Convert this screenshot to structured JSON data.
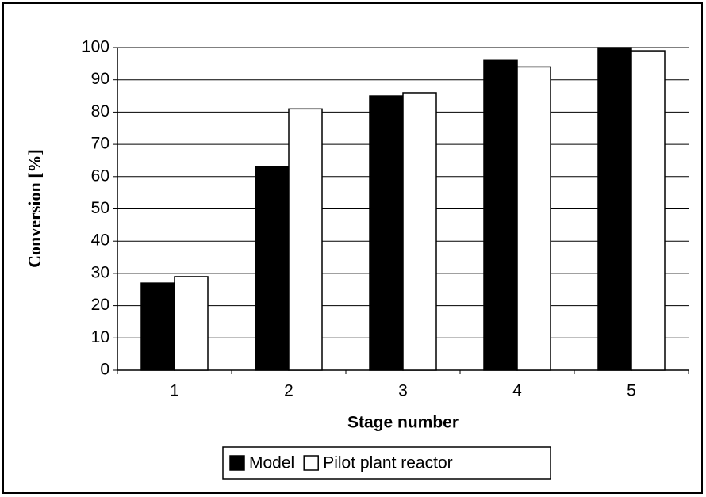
{
  "chart_data": {
    "type": "bar",
    "x_label": "Stage number",
    "y_label": "Conversion [%]",
    "categories": [
      "1",
      "2",
      "3",
      "4",
      "5"
    ],
    "series": [
      {
        "name": "Model",
        "color": "#000000",
        "values": [
          27,
          63,
          85,
          96,
          100
        ]
      },
      {
        "name": "Pilot plant reactor",
        "color": "#ffffff",
        "values": [
          29,
          81,
          86,
          94,
          99
        ]
      }
    ],
    "ylim": [
      0,
      100
    ],
    "yticks": [
      0,
      10,
      20,
      30,
      40,
      50,
      60,
      70,
      80,
      90,
      100
    ],
    "grid": true,
    "legend": "bottom"
  }
}
